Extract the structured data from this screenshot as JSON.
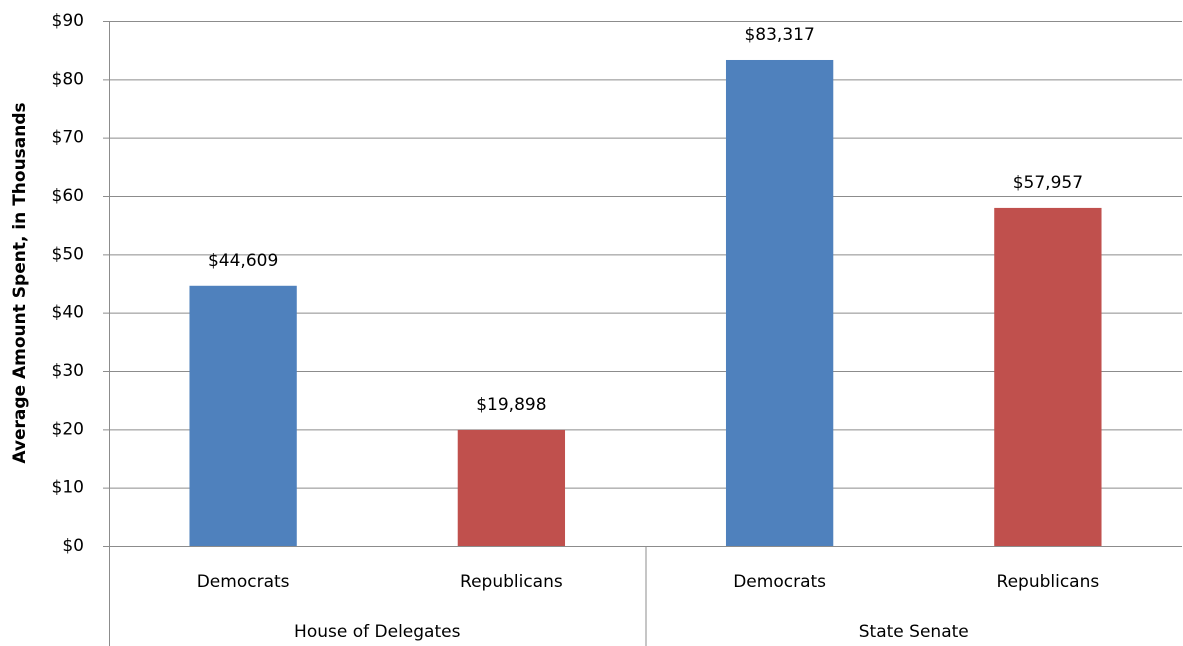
{
  "chart_data": {
    "type": "bar",
    "y_label": "Average Amount Spent, in Thousands",
    "groups": [
      {
        "label": "House of Delegates",
        "categories": [
          "Democrats",
          "Republicans"
        ],
        "values": [
          44.609,
          19.898
        ],
        "value_labels": [
          "$44,609",
          "$19,898"
        ]
      },
      {
        "label": "State Senate",
        "categories": [
          "Democrats",
          "Republicans"
        ],
        "values": [
          83.317,
          57.957
        ],
        "value_labels": [
          "$83,317",
          "$57,957"
        ]
      }
    ],
    "colors": [
      "#4f81bd",
      "#c0504d"
    ],
    "ylim": [
      0,
      90
    ],
    "yticks": [
      {
        "value": 0,
        "label": "$0"
      },
      {
        "value": 10,
        "label": "$10"
      },
      {
        "value": 20,
        "label": "$20"
      },
      {
        "value": 30,
        "label": "$30"
      },
      {
        "value": 40,
        "label": "$40"
      },
      {
        "value": 50,
        "label": "$50"
      },
      {
        "value": 60,
        "label": "$60"
      },
      {
        "value": 70,
        "label": "$70"
      },
      {
        "value": 80,
        "label": "$80"
      },
      {
        "value": 90,
        "label": "$90"
      }
    ],
    "grid": true
  }
}
